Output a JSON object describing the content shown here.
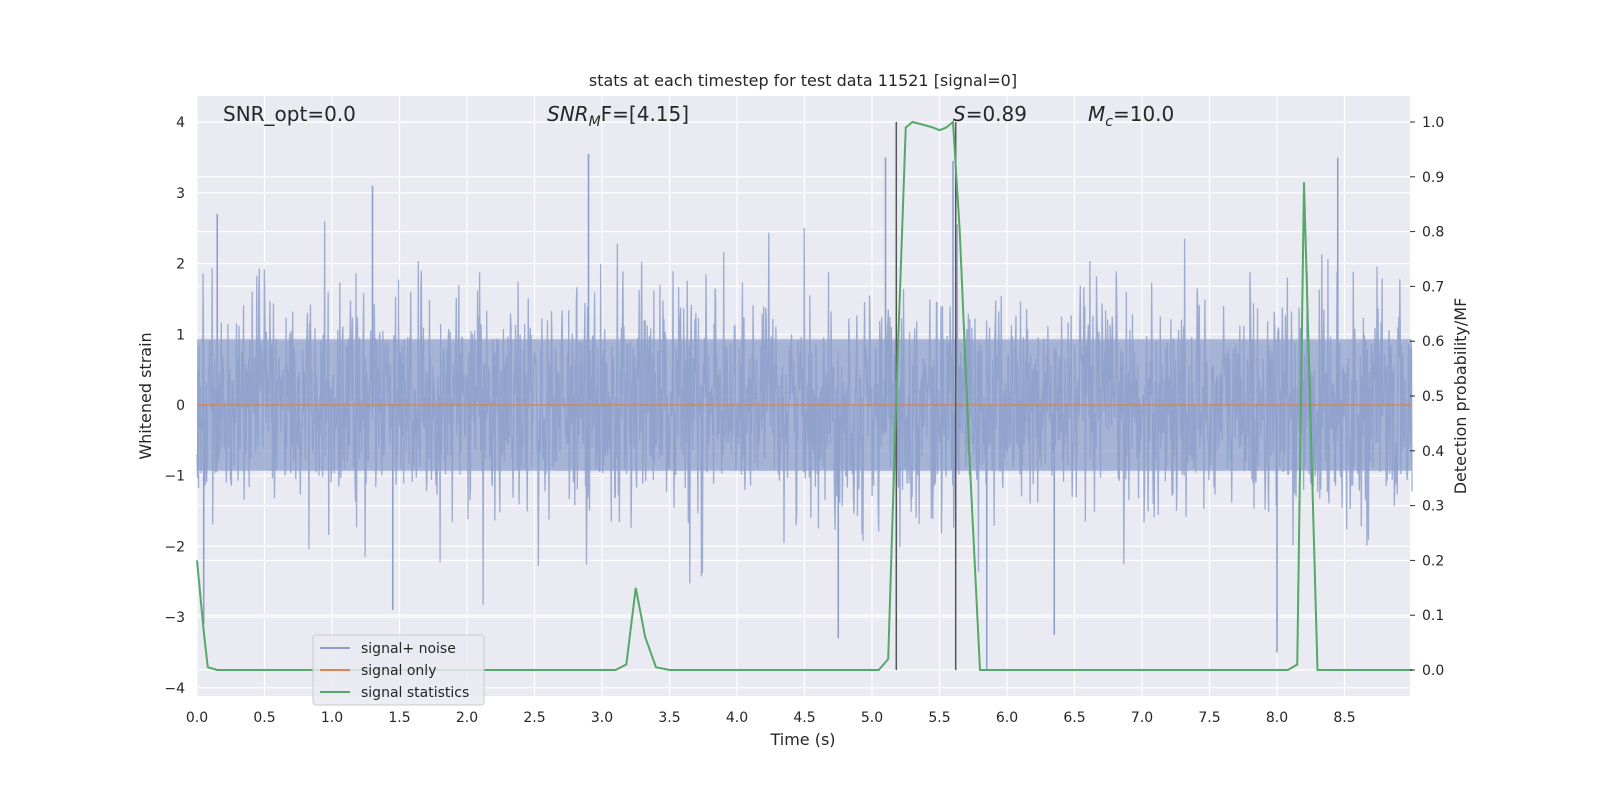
{
  "chart_data": {
    "type": "line",
    "title": "stats at each timestep for test data 11521 [signal=0]",
    "xlabel": "Time (s)",
    "ylabel_left": "Whitened strain",
    "ylabel_right": "Detection probability/MF",
    "xlim": [
      0.0,
      9.0
    ],
    "ylim_left": [
      -4.1,
      4.35
    ],
    "ylim_right": [
      -0.045,
      1.045
    ],
    "x_ticks": [
      "0.0",
      "0.5",
      "1.0",
      "1.5",
      "2.0",
      "2.5",
      "3.0",
      "3.5",
      "4.0",
      "4.5",
      "5.0",
      "5.5",
      "6.0",
      "6.5",
      "7.0",
      "7.5",
      "8.0",
      "8.5"
    ],
    "x_tick_values": [
      0.0,
      0.5,
      1.0,
      1.5,
      2.0,
      2.5,
      3.0,
      3.5,
      4.0,
      4.5,
      5.0,
      5.5,
      6.0,
      6.5,
      7.0,
      7.5,
      8.0,
      8.5
    ],
    "y_ticks_left": [
      "4",
      "3",
      "2",
      "1",
      "0",
      "−1",
      "−2",
      "−3",
      "−4"
    ],
    "y_tick_values_left": [
      4,
      3,
      2,
      1,
      0,
      -1,
      -2,
      -3,
      -4
    ],
    "y_ticks_right": [
      "1.0",
      "0.9",
      "0.8",
      "0.7",
      "0.6",
      "0.5",
      "0.4",
      "0.3",
      "0.2",
      "0.1",
      "0.0"
    ],
    "y_tick_values_right": [
      1.0,
      0.9,
      0.8,
      0.7,
      0.6,
      0.5,
      0.4,
      0.3,
      0.2,
      0.1,
      0.0
    ],
    "grid": true,
    "legend_position": "lower-left",
    "series": [
      {
        "name": "signal+ noise",
        "color": "#8da0cb",
        "description_values": "dense whitened-noise trace over time, band roughly -1.5 to 1.5 with spikes up to about 3.6 and down to about -3.7",
        "spikes_high": [
          [
            0.15,
            2.7
          ],
          [
            1.3,
            3.1
          ],
          [
            2.9,
            3.55
          ],
          [
            5.1,
            3.5
          ],
          [
            5.6,
            3.45
          ],
          [
            8.45,
            3.5
          ]
        ],
        "spikes_low": [
          [
            0.05,
            -3.1
          ],
          [
            1.45,
            -2.9
          ],
          [
            4.75,
            -3.3
          ],
          [
            5.85,
            -3.75
          ],
          [
            6.35,
            -3.25
          ],
          [
            8.0,
            -3.5
          ]
        ],
        "envelope_range": [
          -1.5,
          1.5
        ]
      },
      {
        "name": "signal only",
        "color": "#dd8452",
        "x": [
          0.0,
          9.0
        ],
        "y": [
          0.0,
          0.0
        ]
      },
      {
        "name": "signal statistics",
        "color": "#55a868",
        "axis": "right",
        "x": [
          0.0,
          0.05,
          0.08,
          0.15,
          3.1,
          3.18,
          3.25,
          3.32,
          3.4,
          3.5,
          5.05,
          5.12,
          5.18,
          5.25,
          5.3,
          5.38,
          5.45,
          5.5,
          5.55,
          5.6,
          5.65,
          5.72,
          5.8,
          8.08,
          8.15,
          8.2,
          8.3,
          9.0
        ],
        "y": [
          0.2,
          0.07,
          0.005,
          0.0,
          0.0,
          0.01,
          0.15,
          0.06,
          0.005,
          0.0,
          0.0,
          0.02,
          0.5,
          0.99,
          1.0,
          0.995,
          0.99,
          0.985,
          0.99,
          1.0,
          0.8,
          0.4,
          0.0,
          0.0,
          0.01,
          0.89,
          0.0,
          0.0
        ]
      }
    ],
    "vertical_lines": [
      5.18,
      5.62
    ],
    "vertical_line_color": "#555555",
    "annotations": [
      {
        "text": "SNR_opt=0.0",
        "kind": "plain"
      },
      {
        "main": "SNR",
        "sub": "M",
        "tail": "F=[4.15]",
        "kind": "italic-sub"
      },
      {
        "main": "S",
        "tail": "=0.89",
        "kind": "italic"
      },
      {
        "main": "M",
        "sub": "c",
        "tail": "=10.0",
        "kind": "italic-sub"
      }
    ]
  },
  "colors": {
    "plot_bg": "#eaeaf2",
    "grid": "#ffffff",
    "text": "#262626"
  }
}
